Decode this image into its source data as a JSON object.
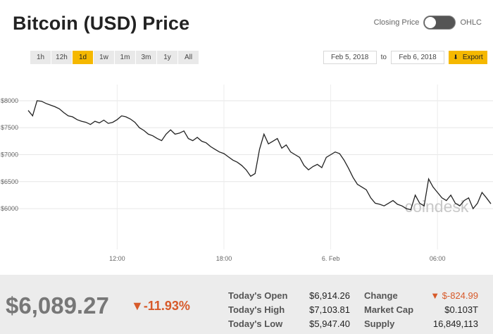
{
  "header": {
    "title": "Bitcoin (USD) Price"
  },
  "toggle": {
    "left_label": "Closing Price",
    "right_label": "OHLC"
  },
  "ranges": [
    {
      "label": "1h",
      "active": false
    },
    {
      "label": "12h",
      "active": false
    },
    {
      "label": "1d",
      "active": true
    },
    {
      "label": "1w",
      "active": false
    },
    {
      "label": "1m",
      "active": false
    },
    {
      "label": "3m",
      "active": false
    },
    {
      "label": "1y",
      "active": false
    },
    {
      "label": "All",
      "active": false
    }
  ],
  "dates": {
    "from": "Feb 5, 2018",
    "to_label": "to",
    "to": "Feb 6, 2018",
    "export_label": "Export"
  },
  "chart_data": {
    "type": "line",
    "watermark": "coindesk",
    "ylim": [
      5400,
      8300
    ],
    "xlim": [
      0,
      26
    ],
    "yticks": [
      {
        "value": 6000,
        "label": "$6000"
      },
      {
        "value": 6500,
        "label": "$6500"
      },
      {
        "value": 7000,
        "label": "$7000"
      },
      {
        "value": 7500,
        "label": "$7500"
      },
      {
        "value": 8000,
        "label": "$8000"
      }
    ],
    "xticks": [
      {
        "value": 5,
        "label": "12:00"
      },
      {
        "value": 11,
        "label": "18:00"
      },
      {
        "value": 17,
        "label": "6. Feb"
      },
      {
        "value": 23,
        "label": "06:00"
      }
    ],
    "grid": true,
    "series": [
      {
        "color": "#222222",
        "x": [
          0,
          0.25,
          0.5,
          0.75,
          1,
          1.25,
          1.5,
          1.75,
          2,
          2.25,
          2.5,
          2.75,
          3,
          3.25,
          3.5,
          3.75,
          4,
          4.25,
          4.5,
          4.75,
          5,
          5.25,
          5.5,
          5.75,
          6,
          6.25,
          6.5,
          6.75,
          7,
          7.25,
          7.5,
          7.75,
          8,
          8.25,
          8.5,
          8.75,
          9,
          9.25,
          9.5,
          9.75,
          10,
          10.25,
          10.5,
          10.75,
          11,
          11.25,
          11.5,
          11.75,
          12,
          12.25,
          12.5,
          12.75,
          13,
          13.25,
          13.5,
          13.75,
          14,
          14.25,
          14.5,
          14.75,
          15,
          15.25,
          15.5,
          15.75,
          16,
          16.25,
          16.5,
          16.75,
          17,
          17.25,
          17.5,
          17.75,
          18,
          18.25,
          18.5,
          18.75,
          19,
          19.25,
          19.5,
          19.75,
          20,
          20.25,
          20.5,
          20.75,
          21,
          21.25,
          21.5,
          21.75,
          22,
          22.25,
          22.5,
          22.75,
          23,
          23.25,
          23.5,
          23.75,
          24,
          24.25,
          24.5,
          24.75,
          25,
          25.25,
          25.5,
          25.75,
          26
        ],
        "values": [
          7820,
          7720,
          8000,
          7990,
          7950,
          7920,
          7890,
          7850,
          7780,
          7720,
          7700,
          7650,
          7620,
          7600,
          7560,
          7620,
          7590,
          7640,
          7580,
          7600,
          7650,
          7720,
          7700,
          7660,
          7600,
          7500,
          7450,
          7380,
          7350,
          7300,
          7260,
          7380,
          7460,
          7380,
          7400,
          7440,
          7300,
          7260,
          7320,
          7250,
          7220,
          7150,
          7100,
          7050,
          7020,
          6960,
          6900,
          6860,
          6800,
          6720,
          6600,
          6650,
          7100,
          7380,
          7200,
          7250,
          7300,
          7120,
          7180,
          7050,
          7000,
          6950,
          6800,
          6720,
          6780,
          6820,
          6760,
          6950,
          7000,
          7050,
          7020,
          6900,
          6750,
          6580,
          6450,
          6400,
          6350,
          6200,
          6100,
          6080,
          6050,
          6100,
          6150,
          6080,
          6050,
          6000,
          5980,
          6250,
          6100,
          6050,
          6550,
          6400,
          6300,
          6200,
          6150,
          6250,
          6100,
          6050,
          6150,
          6200,
          6000,
          6100,
          6300,
          6200,
          6090
        ]
      }
    ]
  },
  "summary": {
    "price": "$6,089.27",
    "change_pct": "▼-11.93%",
    "open_label": "Today's Open",
    "open_value": "$6,914.26",
    "high_label": "Today's High",
    "high_value": "$7,103.81",
    "low_label": "Today's Low",
    "low_value": "$5,947.40",
    "change_label": "Change",
    "change_value": "▼ $-824.99",
    "mcap_label": "Market Cap",
    "mcap_value": "$0.103T",
    "supply_label": "Supply",
    "supply_value": "16,849,113"
  },
  "colors": {
    "accent": "#f5b800",
    "negative": "#d75a2a",
    "footer_bg": "#ececec"
  }
}
